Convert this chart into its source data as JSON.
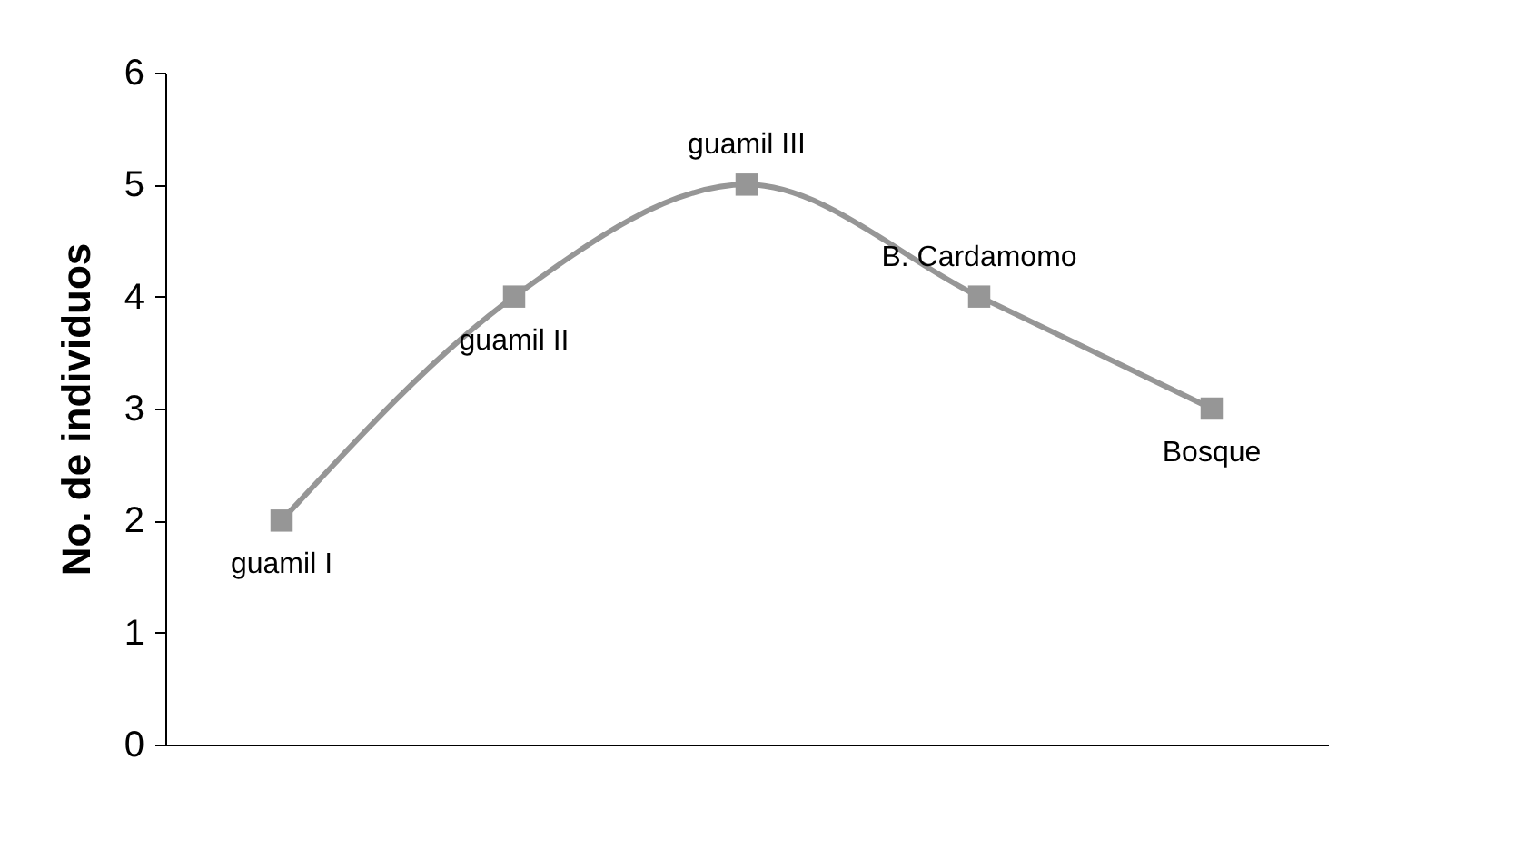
{
  "chart_data": {
    "type": "line",
    "ylabel": "No. de individuos",
    "categories": [
      "guamil I",
      "guamil II",
      "guamil III",
      "B. Cardamomo",
      "Bosque"
    ],
    "series": [
      {
        "color": "#969696",
        "values": [
          2,
          4,
          5,
          4,
          3
        ]
      }
    ],
    "ylim": [
      0,
      6
    ],
    "yticks": [
      0,
      1,
      2,
      3,
      4,
      5,
      6
    ],
    "grid": false,
    "legend": false,
    "marker": "square",
    "line_style": "solid",
    "tick_labels": "y"
  }
}
